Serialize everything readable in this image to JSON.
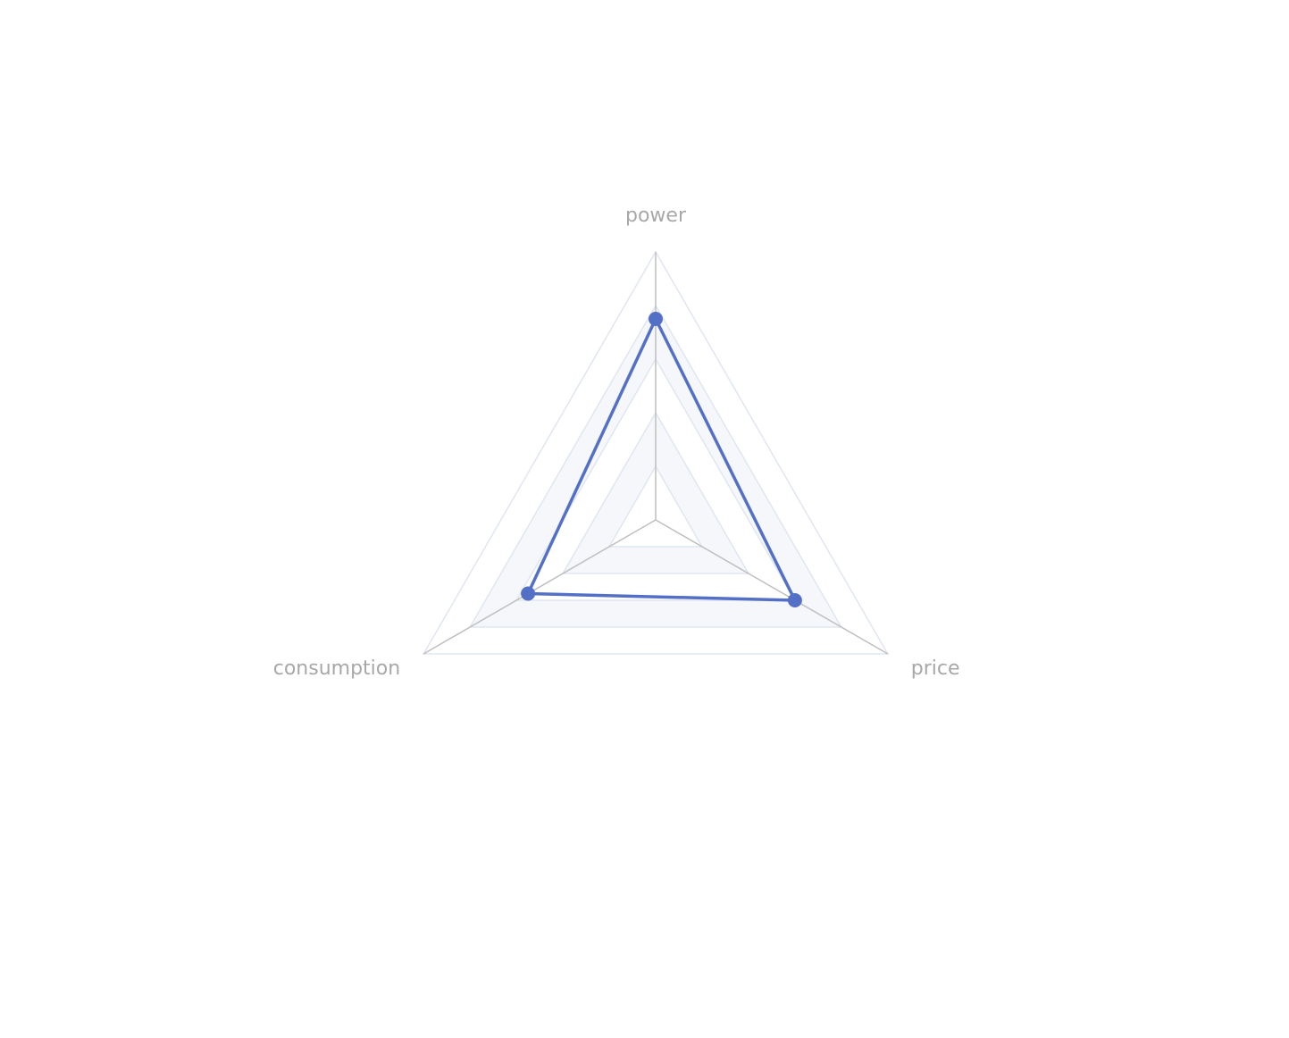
{
  "chart_data": {
    "type": "radar",
    "indicators": [
      {
        "name": "power",
        "max": 100
      },
      {
        "name": "price",
        "max": 100
      },
      {
        "name": "consumption",
        "max": 100
      }
    ],
    "split_number": 5,
    "series": [
      {
        "values": [
          75,
          60,
          55
        ]
      }
    ],
    "split_area_colors": [
      "#ffffff",
      "#f5f7fb"
    ],
    "split_line_color": "#e0e6f1",
    "axis_line_color": "#bfbfbf",
    "label_color": "#a8a8a8",
    "series_color": "#5470c6",
    "legend": false
  }
}
